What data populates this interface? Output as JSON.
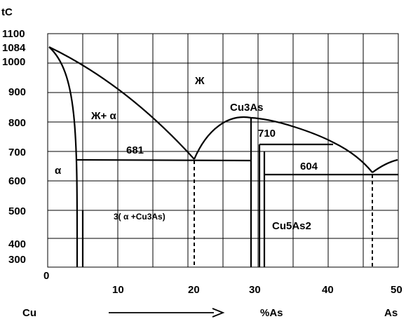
{
  "diagram": {
    "y_axis_label": "tC",
    "y_ticks": [
      "1100",
      "1084",
      "1000",
      "900",
      "800",
      "700",
      "600",
      "500",
      "400",
      "300"
    ],
    "x_ticks": [
      "0",
      "10",
      "20",
      "30",
      "40",
      "50"
    ],
    "bottom": {
      "left": "Cu",
      "middle": "%As",
      "right": "As"
    },
    "regions": {
      "liquid": "Ж",
      "liquid_alpha": "Ж+ α",
      "alpha": "α",
      "eutectic": "3( α +Cu3As)",
      "cu3as": "Cu3As",
      "cu5as2": "Cu5As2"
    },
    "temperatures": {
      "eutectic_left": "681",
      "peritectic": "710",
      "eutectic_right": "604"
    }
  }
}
